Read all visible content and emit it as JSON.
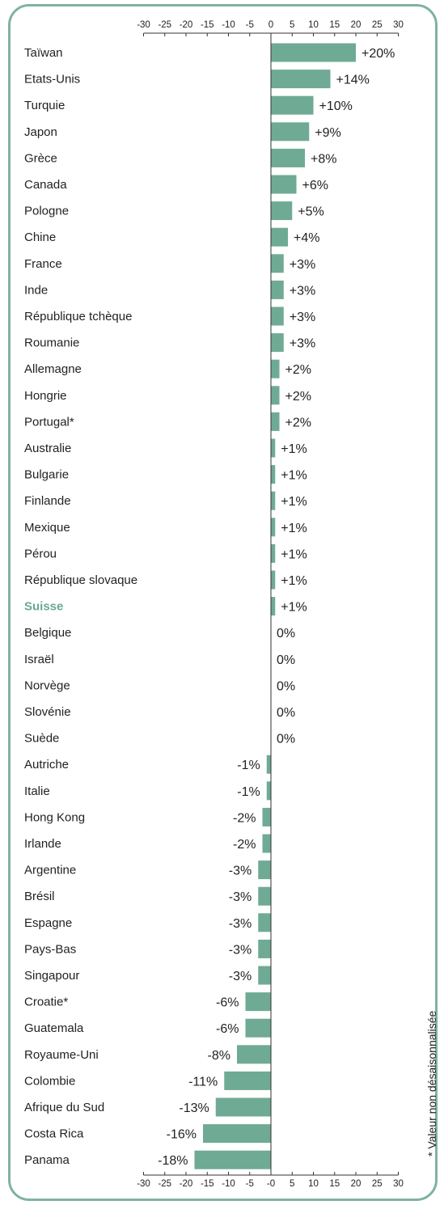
{
  "chart_data": {
    "type": "bar",
    "orientation": "horizontal",
    "xlim": [
      -30,
      30
    ],
    "ticks": [
      "-30",
      "-25",
      "-20",
      "-15",
      "-10",
      "-5",
      "0",
      "5",
      "10",
      "15",
      "20",
      "25",
      "30"
    ],
    "bottom_ticks": [
      "-30",
      "-25",
      "-20",
      "-15",
      "-10",
      "-5",
      "-0",
      "5",
      "10",
      "15",
      "20",
      "25",
      "30"
    ],
    "bar_color": "#6faa94",
    "highlight_color": "#6aa893",
    "highlight": "Suisse",
    "categories": [
      "Taïwan",
      "Etats-Unis",
      "Turquie",
      "Japon",
      "Grèce",
      "Canada",
      "Pologne",
      "Chine",
      "France",
      "Inde",
      "République tchèque",
      "Roumanie",
      "Allemagne",
      "Hongrie",
      "Portugal*",
      "Australie",
      "Bulgarie",
      "Finlande",
      "Mexique",
      "Pérou",
      "République slovaque",
      "Suisse",
      "Belgique",
      "Israël",
      "Norvège",
      "Slovénie",
      "Suède",
      "Autriche",
      "Italie",
      "Hong Kong",
      "Irlande",
      "Argentine",
      "Brésil",
      "Espagne",
      "Pays-Bas",
      "Singapour",
      "Croatie*",
      "Guatemala",
      "Royaume-Uni",
      "Colombie",
      "Afrique du Sud",
      "Costa Rica",
      "Panama"
    ],
    "values": [
      20,
      14,
      10,
      9,
      8,
      6,
      5,
      4,
      3,
      3,
      3,
      3,
      2,
      2,
      2,
      1,
      1,
      1,
      1,
      1,
      1,
      1,
      0,
      0,
      0,
      0,
      0,
      -1,
      -1,
      -2,
      -2,
      -3,
      -3,
      -3,
      -3,
      -3,
      -6,
      -6,
      -8,
      -11,
      -13,
      -16,
      -18
    ],
    "value_labels": [
      "+20%",
      "+14%",
      "+10%",
      "+9%",
      "+8%",
      "+6%",
      "+5%",
      "+4%",
      "+3%",
      "+3%",
      "+3%",
      "+3%",
      "+2%",
      "+2%",
      "+2%",
      "+1%",
      "+1%",
      "+1%",
      "+1%",
      "+1%",
      "+1%",
      "+1%",
      "0%",
      "0%",
      "0%",
      "0%",
      "0%",
      "-1%",
      "-1%",
      "-2%",
      "-2%",
      "-3%",
      "-3%",
      "-3%",
      "-3%",
      "-3%",
      "-6%",
      "-6%",
      "-8%",
      "-11%",
      "-13%",
      "-16%",
      "-18%"
    ],
    "footnote": "* Valeur non désaisonnalisée"
  }
}
